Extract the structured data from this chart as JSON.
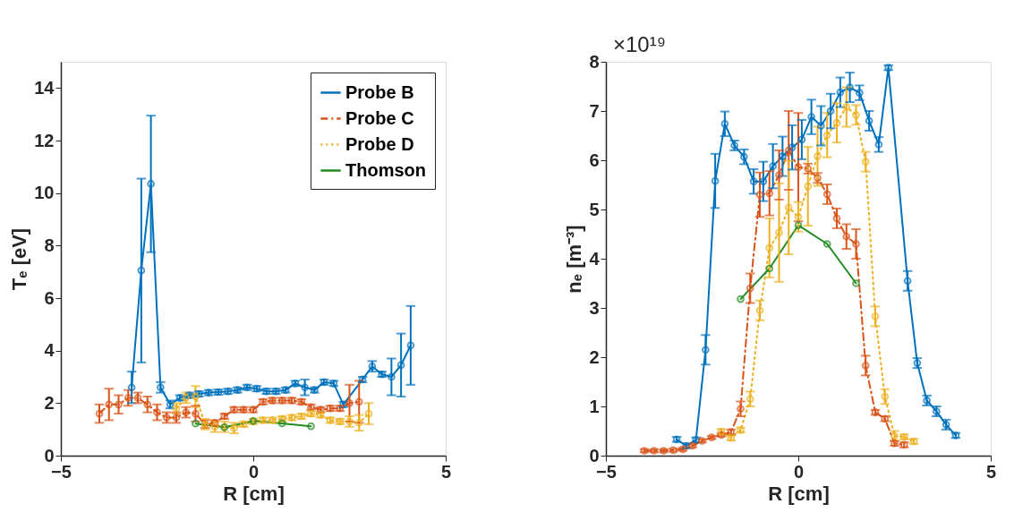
{
  "chart_data": [
    {
      "type": "line",
      "xlabel": "R [cm]",
      "ylabel": "Tₑ [eV]",
      "xlim": [
        -5,
        5
      ],
      "xticks": [
        -5,
        0,
        5
      ],
      "ylim": [
        0,
        15
      ],
      "yticks": [
        0,
        2,
        4,
        6,
        8,
        10,
        12,
        14
      ],
      "grid": false,
      "marker": "circle",
      "legend": "top right",
      "series": [
        {
          "name": "Probe B",
          "color": "#0072bd",
          "line_style": "solid",
          "x": [
            -3.16,
            -2.91,
            -2.66,
            -2.41,
            -2.16,
            -1.91,
            -1.66,
            -1.41,
            -1.16,
            -0.91,
            -0.66,
            -0.41,
            -0.16,
            0.09,
            0.34,
            0.59,
            0.84,
            1.09,
            1.34,
            1.59,
            1.84,
            2.09,
            2.34,
            2.84,
            3.09,
            3.34,
            3.59,
            3.84,
            4.09
          ],
          "values": [
            2.6,
            7.05,
            10.35,
            2.6,
            1.95,
            2.2,
            2.3,
            2.35,
            2.4,
            2.42,
            2.45,
            2.5,
            2.6,
            2.55,
            2.45,
            2.45,
            2.5,
            2.75,
            2.6,
            2.5,
            2.8,
            2.75,
            1.95,
            2.9,
            3.4,
            3.1,
            3.0,
            3.45,
            4.2
          ],
          "errors": [
            0.6,
            3.5,
            2.6,
            0.2,
            0.15,
            0.1,
            0.1,
            0.1,
            0.1,
            0.1,
            0.1,
            0.1,
            0.1,
            0.1,
            0.1,
            0.1,
            0.1,
            0.1,
            0.3,
            0.1,
            0.1,
            0.1,
            0.1,
            0.1,
            0.2,
            0.1,
            0.7,
            1.2,
            1.5
          ]
        },
        {
          "name": "Probe C",
          "color": "#d95319",
          "line_style": "dashdot",
          "x": [
            -4.0,
            -3.75,
            -3.5,
            -3.25,
            -3.0,
            -2.75,
            -2.5,
            -2.25,
            -2.0,
            -1.75,
            -1.5,
            -1.25,
            -1.0,
            -0.75,
            -0.5,
            -0.25,
            0.0,
            0.25,
            0.5,
            0.75,
            1.0,
            1.25,
            1.5,
            1.75,
            2.0,
            2.25,
            2.5,
            2.75
          ],
          "values": [
            1.6,
            1.95,
            1.95,
            2.2,
            2.2,
            1.95,
            1.65,
            1.45,
            1.45,
            1.65,
            1.6,
            1.2,
            1.25,
            1.5,
            1.75,
            1.75,
            1.75,
            2.05,
            2.1,
            2.1,
            2.1,
            2.05,
            1.85,
            1.75,
            1.8,
            1.8,
            2.0,
            2.05
          ],
          "errors": [
            0.35,
            0.6,
            0.35,
            0.3,
            0.2,
            0.3,
            0.3,
            0.2,
            0.2,
            0.2,
            0.3,
            0.15,
            0.1,
            0.1,
            0.1,
            0.1,
            0.1,
            0.1,
            0.1,
            0.1,
            0.1,
            0.1,
            0.1,
            0.1,
            0.1,
            0.1,
            0.7,
            0.8
          ]
        },
        {
          "name": "Probe D",
          "color": "#edb120",
          "line_style": "dotted",
          "x": [
            -2.0,
            -1.75,
            -1.5,
            -1.25,
            -1.0,
            -0.75,
            -0.5,
            -0.25,
            0.0,
            0.25,
            0.5,
            0.75,
            1.0,
            1.25,
            1.5,
            1.75,
            2.0,
            2.25,
            2.5,
            2.75,
            3.0
          ],
          "values": [
            1.8,
            2.2,
            2.25,
            1.2,
            1.1,
            1.1,
            1.05,
            1.2,
            1.3,
            1.35,
            1.35,
            1.4,
            1.45,
            1.5,
            1.6,
            1.55,
            1.35,
            1.3,
            1.3,
            1.25,
            1.6
          ],
          "errors": [
            0.2,
            0.2,
            0.4,
            0.2,
            0.2,
            0.2,
            0.2,
            0.1,
            0.1,
            0.1,
            0.1,
            0.1,
            0.1,
            0.1,
            0.1,
            0.1,
            0.1,
            0.1,
            0.2,
            0.3,
            0.4
          ]
        },
        {
          "name": "Thomson",
          "color": "#228b22",
          "line_style": "solid",
          "x": [
            -1.5,
            -0.75,
            0.0,
            0.75,
            1.5
          ],
          "values": [
            1.22,
            1.08,
            1.32,
            1.23,
            1.12
          ]
        }
      ]
    },
    {
      "type": "line",
      "xlabel": "R [cm]",
      "ylabel": "nₑ [m⁻³]",
      "xlim": [
        -5,
        5
      ],
      "xticks": [
        -5,
        0,
        5
      ],
      "ylim": [
        0,
        8
      ],
      "yticks": [
        0,
        1,
        2,
        3,
        4,
        5,
        6,
        7,
        8
      ],
      "grid": false,
      "marker": "circle",
      "legend": false,
      "annotations": [
        "×10¹⁹"
      ],
      "series": [
        {
          "color": "#0072bd",
          "line_style": "solid",
          "x": [
            -3.16,
            -2.91,
            -2.66,
            -2.41,
            -2.16,
            -1.91,
            -1.66,
            -1.41,
            -1.16,
            -0.91,
            -0.66,
            -0.41,
            -0.16,
            0.09,
            0.34,
            0.59,
            0.84,
            1.09,
            1.34,
            1.59,
            1.84,
            2.09,
            2.34,
            2.84,
            3.09,
            3.34,
            3.59,
            3.84,
            4.09
          ],
          "values": [
            0.33,
            0.2,
            0.32,
            2.15,
            5.58,
            6.74,
            6.3,
            6.07,
            5.57,
            5.57,
            5.88,
            6.08,
            6.26,
            6.42,
            6.88,
            6.7,
            7.0,
            7.38,
            7.48,
            7.37,
            6.8,
            6.32,
            7.88,
            3.55,
            1.88,
            1.12,
            0.9,
            0.63,
            0.41
          ],
          "errors": [
            0.05,
            0.05,
            0.05,
            0.3,
            0.55,
            0.25,
            0.1,
            0.15,
            0.25,
            0.4,
            0.45,
            0.4,
            0.45,
            0.4,
            0.35,
            0.4,
            0.35,
            0.3,
            0.3,
            0.15,
            0.2,
            0.15,
            0.05,
            0.2,
            0.1,
            0.1,
            0.1,
            0.1,
            0.05
          ]
        },
        {
          "color": "#d95319",
          "line_style": "dashdot",
          "x": [
            -4.0,
            -3.75,
            -3.5,
            -3.25,
            -3.0,
            -2.75,
            -2.5,
            -2.25,
            -2.0,
            -1.75,
            -1.5,
            -1.25,
            -1.0,
            -0.75,
            -0.5,
            -0.25,
            0.0,
            0.25,
            0.5,
            0.75,
            1.0,
            1.25,
            1.5,
            1.75,
            2.0,
            2.25,
            2.5,
            2.75
          ],
          "values": [
            0.1,
            0.1,
            0.1,
            0.11,
            0.13,
            0.2,
            0.3,
            0.37,
            0.42,
            0.48,
            0.95,
            3.4,
            5.3,
            5.33,
            5.7,
            6.2,
            5.86,
            5.83,
            5.64,
            5.31,
            4.82,
            4.45,
            4.3,
            1.83,
            0.88,
            0.75,
            0.25,
            0.22
          ],
          "errors": [
            0.03,
            0.03,
            0.03,
            0.03,
            0.03,
            0.03,
            0.03,
            0.03,
            0.03,
            0.05,
            0.15,
            0.3,
            0.45,
            0.45,
            0.5,
            0.8,
            1.1,
            0.1,
            0.1,
            0.2,
            0.2,
            0.25,
            0.3,
            0.2,
            0.05,
            0.05,
            0.05,
            0.05
          ]
        },
        {
          "color": "#edb120",
          "line_style": "dotted",
          "x": [
            -2.0,
            -1.75,
            -1.5,
            -1.25,
            -1.0,
            -0.75,
            -0.5,
            -0.25,
            0.0,
            0.25,
            0.5,
            0.75,
            1.0,
            1.25,
            1.5,
            1.75,
            2.0,
            2.25,
            2.5,
            2.75,
            3.0
          ],
          "values": [
            0.49,
            0.36,
            0.52,
            1.15,
            2.95,
            4.22,
            4.53,
            5.04,
            4.85,
            5.47,
            6.08,
            6.51,
            6.76,
            7.08,
            6.92,
            5.97,
            2.83,
            1.2,
            0.4,
            0.38,
            0.29
          ],
          "errors": [
            0.05,
            0.05,
            0.05,
            0.15,
            0.2,
            0.6,
            1.0,
            0.95,
            0.3,
            0.8,
            0.6,
            0.45,
            0.4,
            0.4,
            0.2,
            0.2,
            0.2,
            0.15,
            0.1,
            0.05,
            0.05
          ]
        },
        {
          "color": "#228b22",
          "line_style": "solid",
          "x": [
            -1.5,
            -0.75,
            0.0,
            0.75,
            1.5
          ],
          "values": [
            3.18,
            3.8,
            4.68,
            4.3,
            3.5
          ]
        }
      ]
    }
  ]
}
